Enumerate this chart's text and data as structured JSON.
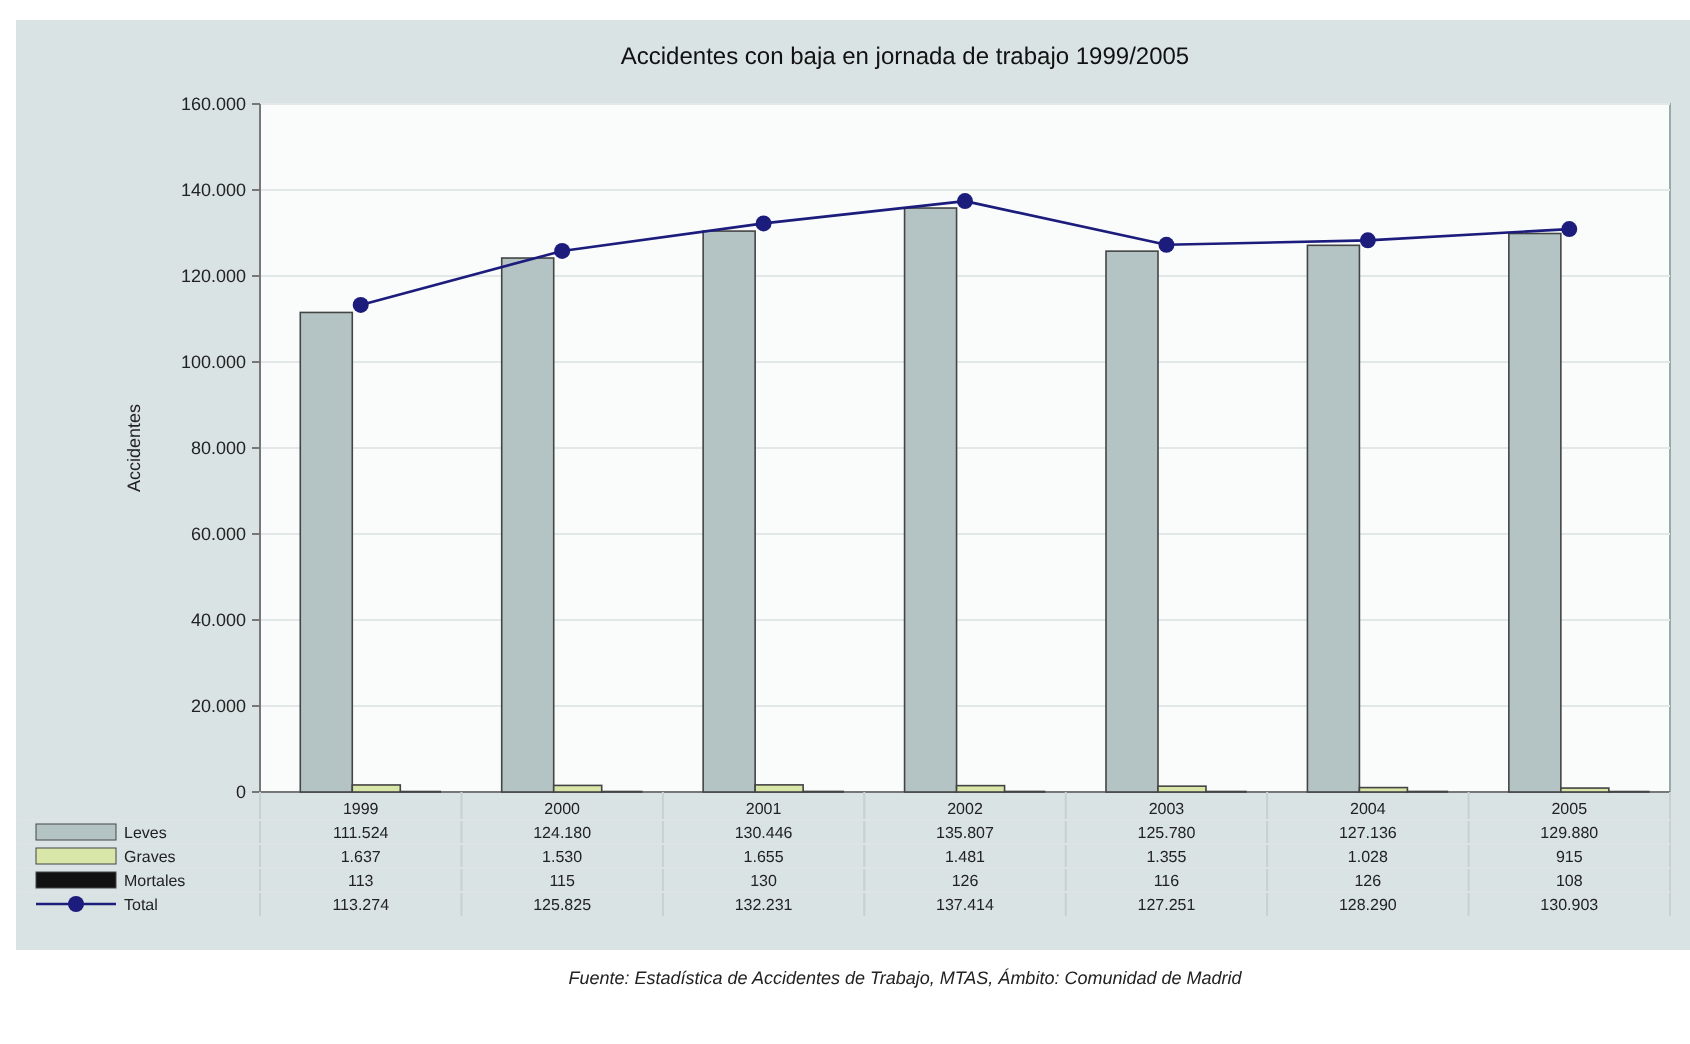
{
  "chart_data": {
    "type": "bar",
    "title": "Accidentes con baja en jornada de trabajo 1999/2005",
    "ylabel": "Accidentes",
    "categories": [
      "1999",
      "2000",
      "2001",
      "2002",
      "2003",
      "2004",
      "2005"
    ],
    "series": [
      {
        "name": "Leves",
        "color": "#b4c4c4",
        "values": [
          111524,
          124180,
          130446,
          135807,
          125780,
          127136,
          129880
        ],
        "value_labels": [
          "111.524",
          "124.180",
          "130.446",
          "135.807",
          "125.780",
          "127.136",
          "129.880"
        ]
      },
      {
        "name": "Graves",
        "color": "#d8e6a8",
        "values": [
          1637,
          1530,
          1655,
          1481,
          1355,
          1028,
          915
        ],
        "value_labels": [
          "1.637",
          "1.530",
          "1.655",
          "1.481",
          "1.355",
          "1.028",
          "915"
        ]
      },
      {
        "name": "Mortales",
        "color": "#111111",
        "values": [
          113,
          115,
          130,
          126,
          116,
          126,
          108
        ],
        "value_labels": [
          "113",
          "115",
          "130",
          "126",
          "116",
          "126",
          "108"
        ]
      },
      {
        "name": "Total",
        "type": "line",
        "color": "#1c1c7c",
        "marker": "circle",
        "values": [
          113274,
          125825,
          132231,
          137414,
          127251,
          128290,
          130903
        ],
        "value_labels": [
          "113.274",
          "125.825",
          "132.231",
          "137.414",
          "127.251",
          "128.290",
          "130.903"
        ]
      }
    ],
    "ylim": [
      0,
      160000
    ],
    "yticks": [
      {
        "value": 0,
        "label": "0"
      },
      {
        "value": 20000,
        "label": "20.000"
      },
      {
        "value": 40000,
        "label": "40.000"
      },
      {
        "value": 60000,
        "label": "60.000"
      },
      {
        "value": 80000,
        "label": "80.000"
      },
      {
        "value": 100000,
        "label": "100.000"
      },
      {
        "value": 120000,
        "label": "120.000"
      },
      {
        "value": 140000,
        "label": "140.000"
      },
      {
        "value": 160000,
        "label": "160.000"
      }
    ],
    "grid": "y",
    "legend": "bottom left",
    "annotations": [
      "Fuente: Estadística de Accidentes de Trabajo, MTAS, Ámbito: Comunidad de Madrid"
    ]
  }
}
